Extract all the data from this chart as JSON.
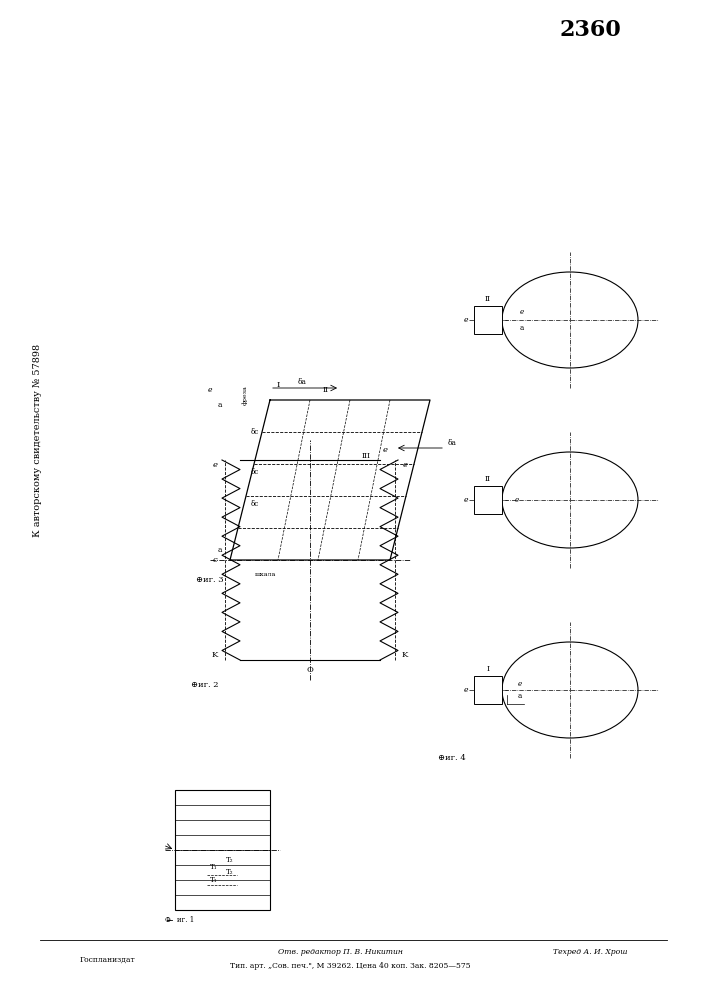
{
  "title_number": "2360",
  "patent_text": "Б6 авторскому свидетельству № 57898",
  "bottom_left": "Госпланиздат",
  "bottom_center": "Отв. редактор П. В. Никитин\tТехред А. И. Хрош",
  "bottom_line2": "Тип. арт. „Сов. печ.“, М 39262. Цена 40 коп. Зак. 8205—575",
  "background": "#ffffff",
  "line_color": "#000000"
}
